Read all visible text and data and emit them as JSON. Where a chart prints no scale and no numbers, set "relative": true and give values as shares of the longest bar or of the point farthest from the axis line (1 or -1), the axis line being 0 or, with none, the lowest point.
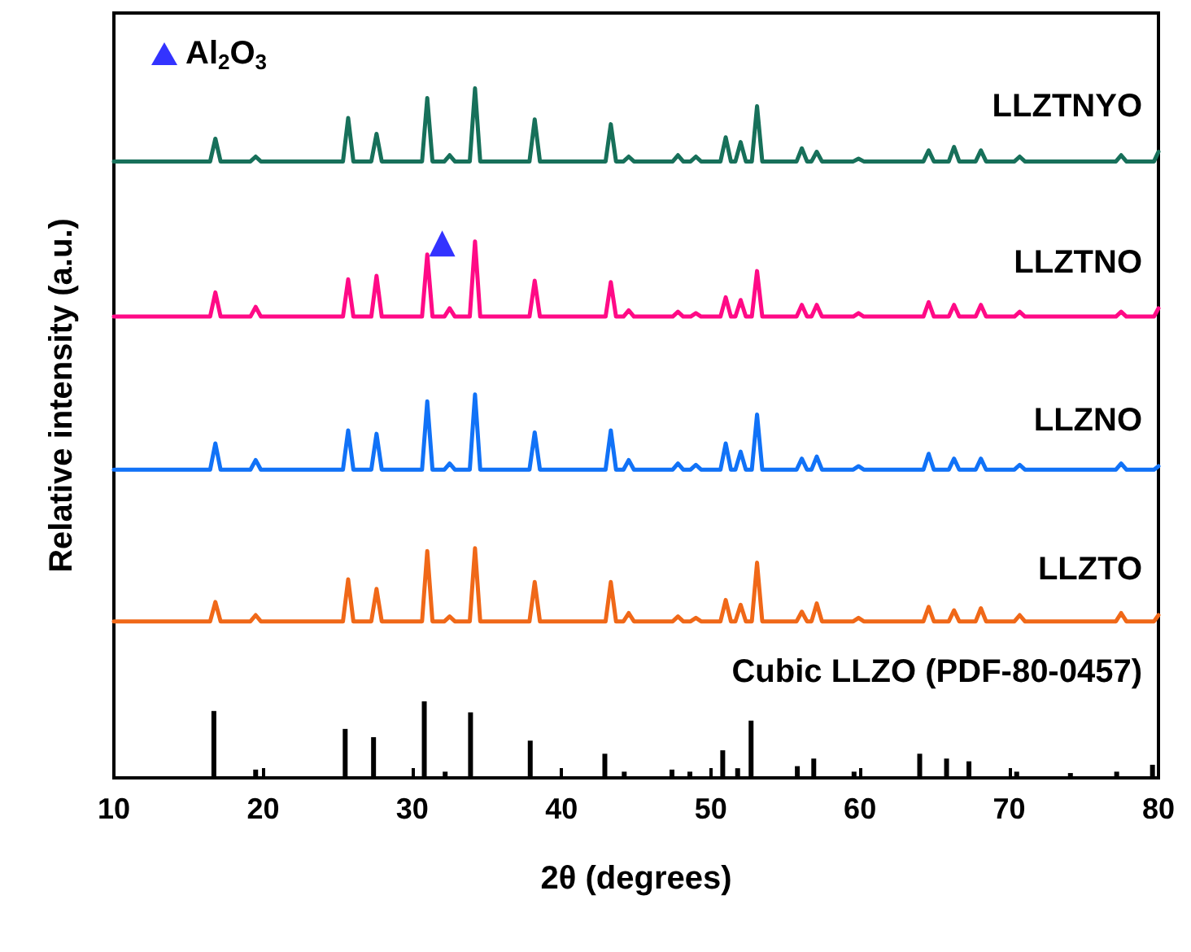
{
  "chart_data": {
    "type": "line",
    "relative": true,
    "xlabel": "2θ (degrees)",
    "ylabel": "Relative intensity (a.u.)",
    "xlim": [
      10,
      80
    ],
    "xticks": [
      10,
      20,
      30,
      40,
      50,
      60,
      70,
      80
    ],
    "grid": false,
    "legend": "top left",
    "line_style": "solid",
    "x": [
      10,
      16.45,
      16.8,
      17.15,
      19.15,
      19.5,
      19.85,
      25.35,
      25.7,
      26.05,
      27.25,
      27.6,
      27.95,
      30.65,
      31,
      31.35,
      32.15,
      32.5,
      32.85,
      33.85,
      34.2,
      34.55,
      37.85,
      38.2,
      38.55,
      42.95,
      43.3,
      43.65,
      44.15,
      44.5,
      44.85,
      47.45,
      47.8,
      48.15,
      48.65,
      49,
      49.35,
      50.65,
      51,
      51.35,
      51.65,
      52,
      52.35,
      52.75,
      53.1,
      53.45,
      55.75,
      56.1,
      56.45,
      56.75,
      57.1,
      57.45,
      59.55,
      59.9,
      60.25,
      64.25,
      64.6,
      64.95,
      65.95,
      66.3,
      66.65,
      67.75,
      68.1,
      68.45,
      70.35,
      70.7,
      71.05,
      77.15,
      77.5,
      77.85,
      79.7,
      80
    ],
    "series": [
      {
        "name": "LLZTNYO",
        "color": "#17705a",
        "values": [
          0.894,
          0.894,
          0.927,
          0.894,
          0.894,
          0.901,
          0.894,
          0.894,
          0.957,
          0.894,
          0.894,
          0.934,
          0.894,
          0.894,
          0.986,
          0.894,
          0.894,
          0.903,
          0.894,
          0.894,
          1,
          0.894,
          0.894,
          0.955,
          0.894,
          0.894,
          0.948,
          0.894,
          0.894,
          0.901,
          0.894,
          0.894,
          0.903,
          0.894,
          0.894,
          0.901,
          0.894,
          0.894,
          0.929,
          0.894,
          0.894,
          0.922,
          0.894,
          0.894,
          0.974,
          0.894,
          0.894,
          0.913,
          0.894,
          0.894,
          0.908,
          0.894,
          0.894,
          0.898,
          0.894,
          0.894,
          0.91,
          0.894,
          0.894,
          0.915,
          0.894,
          0.894,
          0.91,
          0.894,
          0.894,
          0.901,
          0.894,
          0.894,
          0.903,
          0.894,
          0.894,
          0.908
        ]
      },
      {
        "name": "LLZTNO",
        "color": "#ff0a86",
        "values": [
          0.669,
          0.669,
          0.704,
          0.669,
          0.669,
          0.683,
          0.669,
          0.669,
          0.723,
          0.669,
          0.669,
          0.728,
          0.669,
          0.669,
          0.759,
          0.669,
          0.669,
          0.681,
          0.669,
          0.669,
          0.778,
          0.669,
          0.669,
          0.721,
          0.669,
          0.669,
          0.719,
          0.669,
          0.669,
          0.678,
          0.669,
          0.669,
          0.676,
          0.669,
          0.669,
          0.674,
          0.669,
          0.669,
          0.697,
          0.669,
          0.669,
          0.693,
          0.669,
          0.669,
          0.735,
          0.669,
          0.669,
          0.686,
          0.669,
          0.669,
          0.686,
          0.669,
          0.669,
          0.674,
          0.669,
          0.669,
          0.69,
          0.669,
          0.669,
          0.686,
          0.669,
          0.669,
          0.686,
          0.669,
          0.669,
          0.676,
          0.669,
          0.669,
          0.676,
          0.669,
          0.669,
          0.681
        ]
      },
      {
        "name": "LLZNO",
        "color": "#1172f7",
        "values": [
          0.447,
          0.447,
          0.485,
          0.447,
          0.447,
          0.461,
          0.447,
          0.447,
          0.504,
          0.447,
          0.447,
          0.499,
          0.447,
          0.447,
          0.546,
          0.447,
          0.447,
          0.456,
          0.447,
          0.447,
          0.556,
          0.447,
          0.447,
          0.501,
          0.447,
          0.447,
          0.504,
          0.447,
          0.447,
          0.461,
          0.447,
          0.447,
          0.456,
          0.447,
          0.447,
          0.454,
          0.447,
          0.447,
          0.485,
          0.447,
          0.447,
          0.473,
          0.447,
          0.447,
          0.527,
          0.447,
          0.447,
          0.463,
          0.447,
          0.447,
          0.466,
          0.447,
          0.447,
          0.452,
          0.447,
          0.447,
          0.47,
          0.447,
          0.447,
          0.463,
          0.447,
          0.447,
          0.463,
          0.447,
          0.447,
          0.454,
          0.447,
          0.447,
          0.456,
          0.447,
          0.447,
          0.452
        ]
      },
      {
        "name": "LLZTO",
        "color": "#f06818",
        "values": [
          0.227,
          0.227,
          0.255,
          0.227,
          0.227,
          0.236,
          0.227,
          0.227,
          0.288,
          0.227,
          0.227,
          0.274,
          0.227,
          0.227,
          0.329,
          0.227,
          0.227,
          0.234,
          0.227,
          0.227,
          0.333,
          0.227,
          0.227,
          0.284,
          0.227,
          0.227,
          0.284,
          0.227,
          0.227,
          0.239,
          0.227,
          0.227,
          0.234,
          0.227,
          0.227,
          0.232,
          0.227,
          0.227,
          0.258,
          0.227,
          0.227,
          0.251,
          0.227,
          0.227,
          0.312,
          0.227,
          0.227,
          0.241,
          0.227,
          0.227,
          0.253,
          0.227,
          0.227,
          0.232,
          0.227,
          0.227,
          0.248,
          0.227,
          0.227,
          0.243,
          0.227,
          0.227,
          0.246,
          0.227,
          0.227,
          0.236,
          0.227,
          0.227,
          0.239,
          0.227,
          0.227,
          0.236
        ]
      },
      {
        "name": "Cubic LLZO (PDF-80-0457)",
        "type": "bar",
        "color": "#000000",
        "x": [
          16.7,
          19.5,
          25.5,
          27.4,
          30.8,
          32.2,
          33.9,
          37.9,
          42.9,
          44.2,
          47.4,
          48.6,
          50.8,
          51.8,
          52.7,
          55.8,
          56.9,
          59.6,
          64.0,
          65.8,
          67.3,
          70.5,
          74.1,
          77.2,
          79.6
        ],
        "values": [
          0.097,
          0.012,
          0.071,
          0.059,
          0.111,
          0.009,
          0.095,
          0.054,
          0.035,
          0.009,
          0.012,
          0.009,
          0.04,
          0.014,
          0.083,
          0.017,
          0.028,
          0.009,
          0.035,
          0.028,
          0.024,
          0.009,
          0.007,
          0.009,
          0.019
        ]
      },
      {
        "name": "Al$_{2}$O$_{3}$",
        "type": "scatter",
        "marker": "triangle",
        "color": "#0000ff",
        "x": [
          32.0
        ],
        "values": [
          0.775
        ]
      }
    ]
  }
}
